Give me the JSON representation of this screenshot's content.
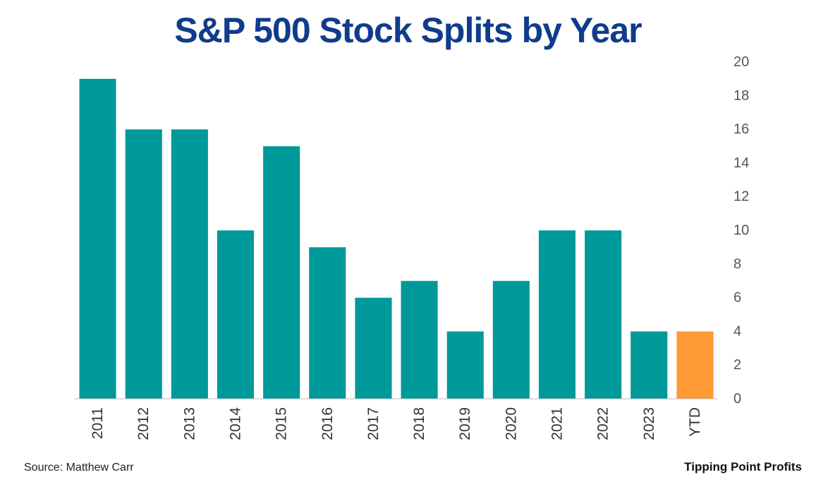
{
  "chart_data": {
    "type": "bar",
    "title": "S&P 500 Stock Splits by Year",
    "categories": [
      "2011",
      "2012",
      "2013",
      "2014",
      "2015",
      "2016",
      "2017",
      "2018",
      "2019",
      "2020",
      "2021",
      "2022",
      "2023",
      "YTD"
    ],
    "values": [
      19,
      16,
      16,
      10,
      15,
      9,
      6,
      7,
      4,
      7,
      10,
      10,
      4,
      4
    ],
    "ylim": [
      0,
      20
    ],
    "yticks": [
      0,
      2,
      4,
      6,
      8,
      10,
      12,
      14,
      16,
      18,
      20
    ],
    "y_axis_position": "right",
    "grid": false,
    "legend": "none",
    "bar_color": "#009999",
    "highlight_color": "#ff9933",
    "highlight_category": "YTD"
  },
  "footer": {
    "source": "Source: Matthew Carr",
    "brand": "Tipping Point Profits"
  }
}
